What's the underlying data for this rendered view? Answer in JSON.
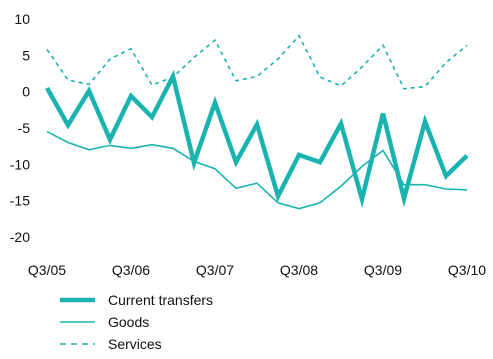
{
  "chart_data": {
    "type": "line",
    "x": [
      "Q3/05",
      "Q4/05",
      "Q1/06",
      "Q2/06",
      "Q3/06",
      "Q4/06",
      "Q1/07",
      "Q2/07",
      "Q3/07",
      "Q4/07",
      "Q1/08",
      "Q2/08",
      "Q3/08",
      "Q4/08",
      "Q1/09",
      "Q2/09",
      "Q3/09",
      "Q4/09",
      "Q1/10",
      "Q2/10",
      "Q3/10"
    ],
    "x_tick_labels": [
      "Q3/05",
      "Q3/06",
      "Q3/07",
      "Q3/08",
      "Q3/09",
      "Q3/10"
    ],
    "ylim": [
      -20,
      10
    ],
    "y_ticks": [
      "10",
      "5",
      "0",
      "-5",
      "-10",
      "-15",
      "-20"
    ],
    "grid": false,
    "legend_position": "bottom-left",
    "series": [
      {
        "name": "Current transfers",
        "style": "thick-solid",
        "color": "#1bb3b0",
        "values": [
          0.5,
          -4.6,
          0.1,
          -6.6,
          -0.6,
          -3.5,
          2.1,
          -9.8,
          -1.5,
          -9.7,
          -4.5,
          -14.4,
          -8.7,
          -9.7,
          -4.4,
          -14.8,
          -3.0,
          -14.7,
          -4.1,
          -11.6,
          -8.8
        ]
      },
      {
        "name": "Goods",
        "style": "thin-solid",
        "color": "#1bb3b0",
        "values": [
          -5.5,
          -7.0,
          -8.0,
          -7.4,
          -7.8,
          -7.3,
          -7.8,
          -9.6,
          -10.6,
          -13.3,
          -12.6,
          -15.3,
          -16.1,
          -15.3,
          -13.0,
          -10.3,
          -8.1,
          -12.8,
          -12.8,
          -13.4,
          -13.5
        ]
      },
      {
        "name": "Services",
        "style": "dashed",
        "color": "#1bb3b0",
        "values": [
          5.8,
          1.6,
          1.0,
          4.5,
          5.9,
          0.9,
          2.0,
          4.7,
          7.1,
          1.5,
          2.1,
          4.5,
          7.7,
          2.0,
          0.8,
          3.4,
          6.4,
          0.4,
          0.7,
          4.0,
          6.4
        ]
      }
    ]
  }
}
